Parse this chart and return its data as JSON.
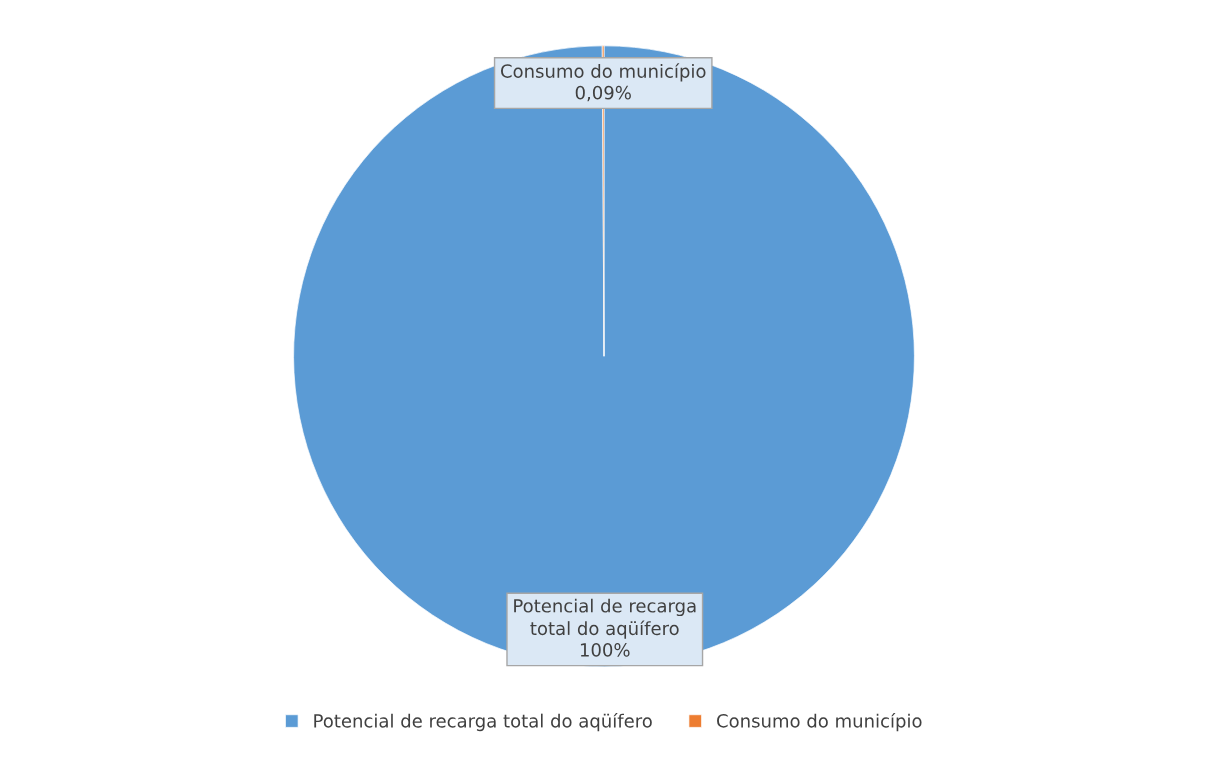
{
  "chart_data": {
    "type": "pie",
    "categories": [
      "Potencial de recarga total do aqüífero",
      "Consumo do município"
    ],
    "values": [
      100,
      0.09
    ],
    "colors": [
      "#5b9bd5",
      "#ed7d31"
    ],
    "value_labels": [
      "100%",
      "0,09%"
    ],
    "legend": "bottom"
  }
}
